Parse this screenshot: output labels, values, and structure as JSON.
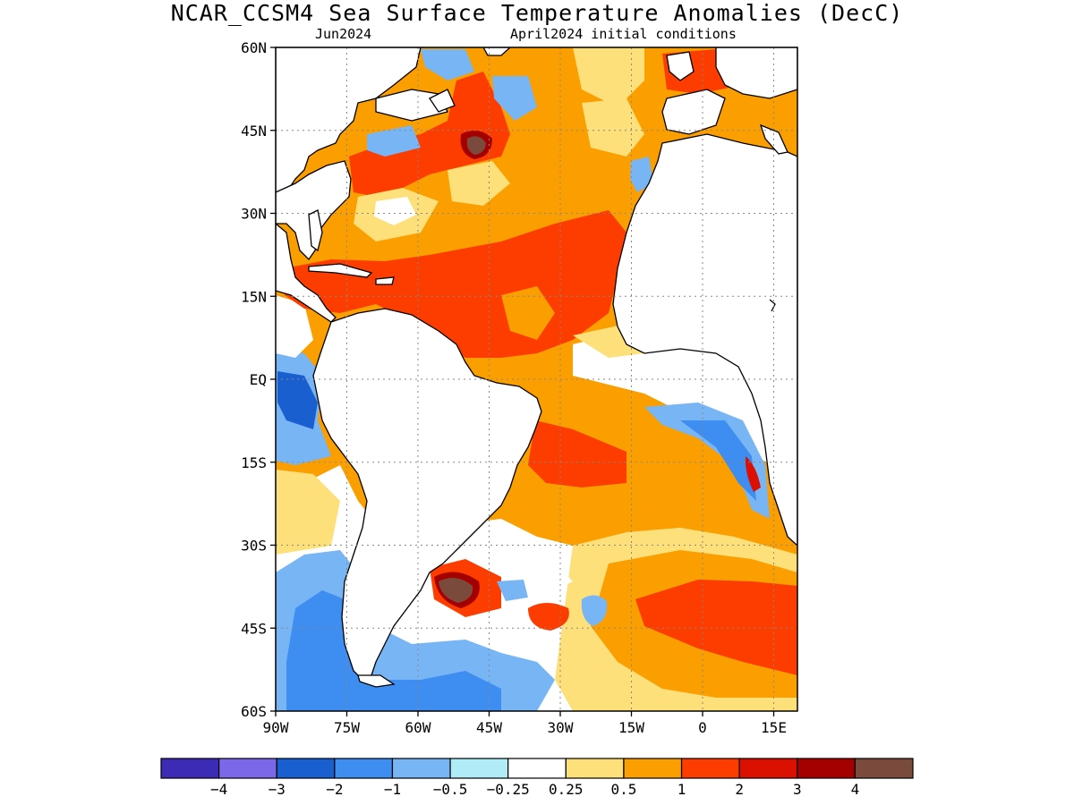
{
  "title": "NCAR_CCSM4 Sea Surface Temperature Anomalies (DecC)",
  "subtitle_left": "Jun2024",
  "subtitle_right": "April2024 initial conditions",
  "map": {
    "type": "filled-contour map",
    "lon_range": [
      -90,
      20
    ],
    "lat_range": [
      -60,
      60
    ],
    "lat_ticks": [
      "60N",
      "45N",
      "30N",
      "15N",
      "EQ",
      "15S",
      "30S",
      "45S",
      "60S"
    ],
    "lon_ticks": [
      "90W",
      "75W",
      "60W",
      "45W",
      "30W",
      "15W",
      "0",
      "15E"
    ],
    "grid": "dotted",
    "land_color": "#ffffff",
    "coastline_color": "#000000"
  },
  "colorbar": {
    "colors": [
      "#3b2bb5",
      "#7b68e8",
      "#1a5fd0",
      "#3d8ef0",
      "#78b5f5",
      "#b0ecf7",
      "#ffffff",
      "#fde07a",
      "#fb9e00",
      "#fd3c00",
      "#dc1000",
      "#a50000",
      "#7a4a3c"
    ],
    "labels": [
      "-4",
      "-3",
      "-2",
      "-1",
      "-0.5",
      "-0.25",
      "0.25",
      "0.5",
      "1",
      "2",
      "3",
      "4"
    ]
  }
}
